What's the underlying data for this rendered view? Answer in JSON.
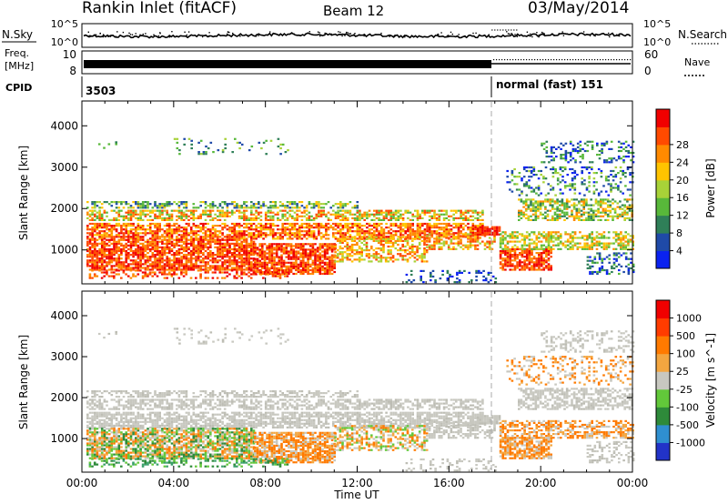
{
  "header": {
    "title": "Rankin Inlet (fitACF)",
    "beam": "Beam 12",
    "date": "03/May/2014"
  },
  "noise_panel": {
    "left_label": "N.Sky",
    "right_label": "N.Search",
    "left_ticks": [
      "10^5",
      "10^0"
    ],
    "right_ticks": [
      "10^5",
      "10^0"
    ]
  },
  "freq_panel": {
    "left_label_1": "Freq.",
    "left_label_2": "[MHz]",
    "left_ticks": [
      "10",
      "8"
    ],
    "right_label": "Nave",
    "right_ticks": [
      "60",
      "0"
    ]
  },
  "cpid_panel": {
    "label": "CPID",
    "segments": [
      "3503",
      "normal (fast) 151"
    ]
  },
  "x_axis": {
    "label": "Time UT",
    "ticks": [
      "00:00",
      "04:00",
      "08:00",
      "12:00",
      "16:00",
      "20:00",
      "00:00"
    ]
  },
  "chart_data": [
    {
      "type": "heatmap",
      "title": "",
      "xlabel": "Time UT",
      "ylabel": "Slant Range [km]",
      "xlim": [
        "00:00",
        "24:00"
      ],
      "ylim": [
        180,
        4600
      ],
      "y_ticks": [
        "1000",
        "2000",
        "3000",
        "4000"
      ],
      "colorbar": {
        "label": "Power [dB]",
        "ticks": [
          "4",
          "8",
          "12",
          "16",
          "20",
          "24",
          "28"
        ],
        "colors": [
          "#0a22f0",
          "#1f4aa8",
          "#2f7f58",
          "#58b83a",
          "#a8d238",
          "#ffc400",
          "#ff8a00",
          "#ff4a00",
          "#f00000"
        ]
      }
    },
    {
      "type": "heatmap",
      "title": "",
      "xlabel": "Time UT",
      "ylabel": "Slant Range [km]",
      "xlim": [
        "00:00",
        "24:00"
      ],
      "ylim": [
        180,
        4600
      ],
      "y_ticks": [
        "1000",
        "2000",
        "3000",
        "4000"
      ],
      "colorbar": {
        "label": "Velocity [m s^-1]",
        "ticks": [
          "1000",
          "500",
          "100",
          "25",
          "-25",
          "-100",
          "-500",
          "-1000"
        ],
        "colors": [
          "#2233c8",
          "#2f8fd0",
          "#2e8a3a",
          "#62c83a",
          "#c8c8c0",
          "#f3a640",
          "#ff7a00",
          "#ff3c00",
          "#f00000"
        ]
      }
    }
  ]
}
